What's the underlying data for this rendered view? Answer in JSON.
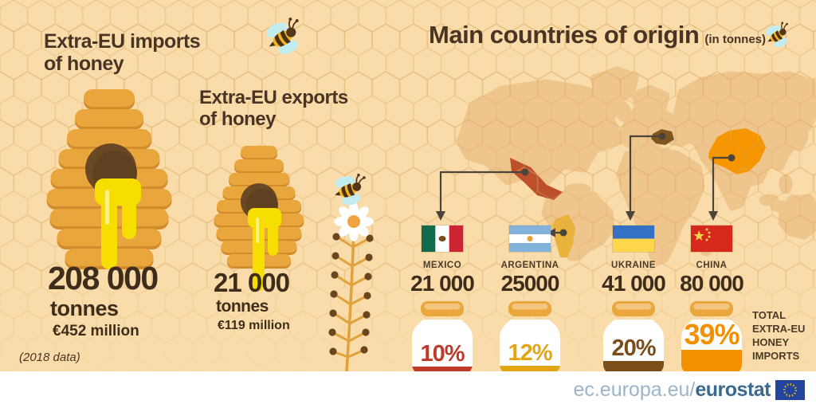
{
  "left": {
    "imports_title": "Extra-EU imports of honey",
    "exports_title": "Extra-EU exports of honey",
    "imports": {
      "value": "208 000",
      "unit": "tonnes",
      "money": "€452 million"
    },
    "exports": {
      "value": "21 000",
      "unit": "tonnes",
      "money": "€119 million"
    },
    "note": "(2018 data)"
  },
  "right": {
    "title": "Main countries of origin",
    "subtitle": "(in tonnes)",
    "total_label": "TOTAL EXTRA-EU HONEY IMPORTS",
    "countries": [
      {
        "name": "MEXICO",
        "value": "21 000",
        "percent": "10%",
        "pct": 10,
        "color": "#c03a28",
        "map_color": "#bd4f2b"
      },
      {
        "name": "ARGENTINA",
        "value": "25000",
        "percent": "12%",
        "pct": 12,
        "color": "#e2a513",
        "map_color": "#e9b33c"
      },
      {
        "name": "UKRAINE",
        "value": "41 000",
        "percent": "20%",
        "pct": 20,
        "color": "#7a4e1a",
        "map_color": "#7e5620"
      },
      {
        "name": "CHINA",
        "value": "80 000",
        "percent": "39%",
        "pct": 39,
        "color": "#f39000",
        "map_color": "#f59600"
      }
    ]
  },
  "footer": {
    "url_prefix": "ec.europa.eu/",
    "url_bold": "eurostat"
  },
  "icons": [
    "bee-icon",
    "beehive-icon",
    "honey-drip",
    "honey-jar-icon",
    "flower-icon",
    "world-map",
    "eu-flag-icon",
    "mexico-flag",
    "argentina-flag",
    "ukraine-flag",
    "china-flag"
  ],
  "colors": {
    "background": "#f9dca9",
    "honeycomb_line": "#dca85f",
    "map_land": "#efc58e",
    "text_dark": "#4a3524",
    "number_dark": "#3e2d1a",
    "hive": "#e9a63c",
    "hive_shadow": "#d28c2b",
    "hive_hole": "#5f4020",
    "honey": "#f6df00",
    "bee_wing": "#c2ecf0",
    "bee_body": "#f2b31d",
    "jar_lid": "#e9a73e",
    "arrow": "#4b443b",
    "footer_blue": "#3b688f",
    "footer_light_blue": "#9cb4c9",
    "eu_flag_blue": "#24459f"
  },
  "chart_data": [
    {
      "type": "bar",
      "title": "Extra-EU trade of honey (2018 data)",
      "categories": [
        "Extra-EU imports of honey",
        "Extra-EU exports of honey"
      ],
      "values": [
        208000,
        21000
      ],
      "unit": "tonnes",
      "values_eur_million": [
        452,
        119
      ]
    },
    {
      "type": "bar",
      "title": "Main countries of origin (in tonnes)",
      "categories": [
        "MEXICO",
        "ARGENTINA",
        "UKRAINE",
        "CHINA"
      ],
      "values": [
        21000,
        25000,
        41000,
        80000
      ],
      "percent_of_total_extra_eu_honey_imports": [
        10,
        12,
        20,
        39
      ],
      "note": "percentages shown inside honey jars"
    }
  ]
}
